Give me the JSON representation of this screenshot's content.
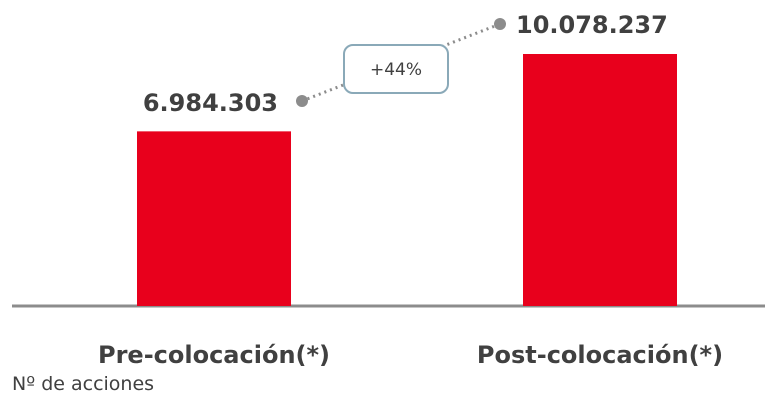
{
  "chart_data": {
    "type": "bar",
    "categories": [
      "Pre-colocación(*)",
      "Post-colocación(*)"
    ],
    "values": [
      6984303,
      10078237
    ],
    "value_labels": [
      "6.984.303",
      "10.078.237"
    ],
    "change_label": "+44%",
    "unit_label": "Nº de acciones",
    "ylim": [
      0,
      10078237
    ],
    "grid": false,
    "legend": "none",
    "colors": {
      "bar": "#e8001c",
      "text": "#404040",
      "connector": "#8c8c8c",
      "callout_border": "#8aa9b8",
      "axis": "#8c8c8c"
    }
  }
}
